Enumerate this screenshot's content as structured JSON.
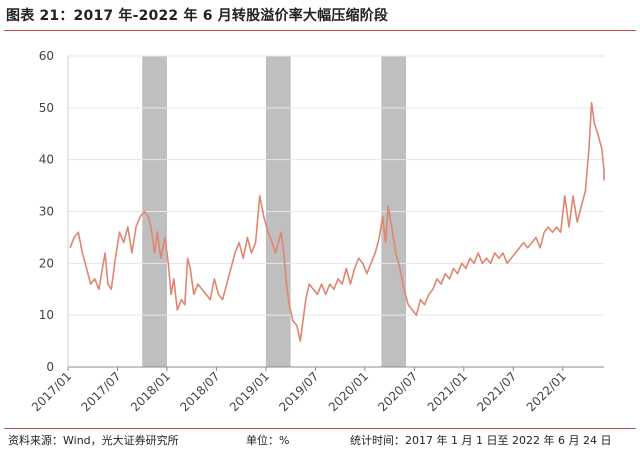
{
  "title": "图表 21：2017 年-2022 年 6 月转股溢价率大幅压缩阶段",
  "footer": {
    "source": "资料来源：Wind，光大证券研究所",
    "unit": "单位：%",
    "period": "统计时间：2017 年 1 月 1 日至 2022 年 6 月 24 日"
  },
  "colors": {
    "line": "#e08670",
    "shade": "#bfbfbf",
    "rule": "#c0504d",
    "grid": "#e6e6e6"
  },
  "chart_data": {
    "type": "line",
    "xlabel": "",
    "ylabel": "",
    "x_ticks": [
      "2017/01",
      "2017/07",
      "2018/01",
      "2018/07",
      "2019/01",
      "2019/07",
      "2020/01",
      "2020/07",
      "2021/01",
      "2021/07",
      "2022/01"
    ],
    "ylim": [
      0,
      60
    ],
    "y_ticks": [
      0,
      10,
      20,
      30,
      40,
      50,
      60
    ],
    "grid": true,
    "x_end": "2022/06",
    "shaded_periods": [
      [
        "2017/10",
        "2018/01"
      ],
      [
        "2019/01",
        "2019/04"
      ],
      [
        "2020/03",
        "2020/06"
      ]
    ],
    "series": [
      {
        "points": [
          [
            "2017/01",
            23
          ],
          [
            "2017/01",
            25
          ],
          [
            "2017/02",
            26
          ],
          [
            "2017/02",
            22
          ],
          [
            "2017/03",
            19
          ],
          [
            "2017/03",
            16
          ],
          [
            "2017/04",
            17
          ],
          [
            "2017/04",
            15
          ],
          [
            "2017/05",
            19
          ],
          [
            "2017/05",
            22
          ],
          [
            "2017/05",
            16
          ],
          [
            "2017/06",
            15
          ],
          [
            "2017/06",
            21
          ],
          [
            "2017/07",
            26
          ],
          [
            "2017/07",
            24
          ],
          [
            "2017/08",
            27
          ],
          [
            "2017/08",
            22
          ],
          [
            "2017/09",
            27
          ],
          [
            "2017/09",
            29
          ],
          [
            "2017/10",
            30
          ],
          [
            "2017/10",
            29
          ],
          [
            "2017/11",
            26
          ],
          [
            "2017/11",
            22
          ],
          [
            "2017/11",
            26
          ],
          [
            "2017/12",
            21
          ],
          [
            "2017/12",
            25
          ],
          [
            "2018/01",
            20
          ],
          [
            "2018/01",
            14
          ],
          [
            "2018/01",
            17
          ],
          [
            "2018/02",
            11
          ],
          [
            "2018/02",
            13
          ],
          [
            "2018/03",
            12
          ],
          [
            "2018/03",
            21
          ],
          [
            "2018/03",
            19
          ],
          [
            "2018/04",
            14
          ],
          [
            "2018/04",
            16
          ],
          [
            "2018/05",
            15
          ],
          [
            "2018/05",
            14
          ],
          [
            "2018/06",
            13
          ],
          [
            "2018/06",
            17
          ],
          [
            "2018/07",
            14
          ],
          [
            "2018/07",
            13
          ],
          [
            "2018/08",
            16
          ],
          [
            "2018/08",
            19
          ],
          [
            "2018/09",
            22
          ],
          [
            "2018/09",
            24
          ],
          [
            "2018/10",
            21
          ],
          [
            "2018/10",
            25
          ],
          [
            "2018/11",
            22
          ],
          [
            "2018/11",
            24
          ],
          [
            "2018/12",
            33
          ],
          [
            "2018/12",
            29
          ],
          [
            "2019/01",
            26
          ],
          [
            "2019/01",
            24
          ],
          [
            "2019/02",
            22
          ],
          [
            "2019/02",
            24
          ],
          [
            "2019/02",
            26
          ],
          [
            "2019/03",
            22
          ],
          [
            "2019/03",
            16
          ],
          [
            "2019/03",
            12
          ],
          [
            "2019/04",
            9
          ],
          [
            "2019/04",
            8
          ],
          [
            "2019/05",
            5
          ],
          [
            "2019/05",
            9
          ],
          [
            "2019/05",
            13
          ],
          [
            "2019/06",
            16
          ],
          [
            "2019/06",
            15
          ],
          [
            "2019/07",
            14
          ],
          [
            "2019/07",
            16
          ],
          [
            "2019/08",
            14
          ],
          [
            "2019/08",
            16
          ],
          [
            "2019/09",
            15
          ],
          [
            "2019/09",
            17
          ],
          [
            "2019/10",
            16
          ],
          [
            "2019/10",
            19
          ],
          [
            "2019/11",
            16
          ],
          [
            "2019/11",
            19
          ],
          [
            "2019/12",
            21
          ],
          [
            "2019/12",
            20
          ],
          [
            "2020/01",
            18
          ],
          [
            "2020/01",
            20
          ],
          [
            "2020/02",
            22
          ],
          [
            "2020/02",
            25
          ],
          [
            "2020/03",
            29
          ],
          [
            "2020/03",
            24
          ],
          [
            "2020/03",
            31
          ],
          [
            "2020/04",
            27
          ],
          [
            "2020/04",
            22
          ],
          [
            "2020/05",
            19
          ],
          [
            "2020/05",
            15
          ],
          [
            "2020/06",
            12
          ],
          [
            "2020/06",
            11
          ],
          [
            "2020/07",
            10
          ],
          [
            "2020/07",
            13
          ],
          [
            "2020/08",
            12
          ],
          [
            "2020/08",
            14
          ],
          [
            "2020/09",
            15
          ],
          [
            "2020/09",
            17
          ],
          [
            "2020/10",
            16
          ],
          [
            "2020/10",
            18
          ],
          [
            "2020/11",
            17
          ],
          [
            "2020/11",
            19
          ],
          [
            "2020/12",
            18
          ],
          [
            "2020/12",
            20
          ],
          [
            "2021/01",
            19
          ],
          [
            "2021/01",
            21
          ],
          [
            "2021/02",
            20
          ],
          [
            "2021/02",
            22
          ],
          [
            "2021/03",
            20
          ],
          [
            "2021/03",
            21
          ],
          [
            "2021/04",
            20
          ],
          [
            "2021/04",
            22
          ],
          [
            "2021/05",
            21
          ],
          [
            "2021/05",
            22
          ],
          [
            "2021/06",
            20
          ],
          [
            "2021/06",
            21
          ],
          [
            "2021/07",
            22
          ],
          [
            "2021/07",
            23
          ],
          [
            "2021/08",
            24
          ],
          [
            "2021/08",
            23
          ],
          [
            "2021/09",
            24
          ],
          [
            "2021/09",
            25
          ],
          [
            "2021/10",
            23
          ],
          [
            "2021/10",
            26
          ],
          [
            "2021/11",
            27
          ],
          [
            "2021/11",
            26
          ],
          [
            "2021/12",
            27
          ],
          [
            "2021/12",
            26
          ],
          [
            "2022/01",
            33
          ],
          [
            "2022/01",
            27
          ],
          [
            "2022/02",
            33
          ],
          [
            "2022/02",
            28
          ],
          [
            "2022/03",
            31
          ],
          [
            "2022/03",
            34
          ],
          [
            "2022/04",
            42
          ],
          [
            "2022/04",
            51
          ],
          [
            "2022/04",
            47
          ],
          [
            "2022/05",
            45
          ],
          [
            "2022/05",
            42
          ],
          [
            "2022/06",
            38
          ],
          [
            "2022/06",
            36
          ]
        ]
      }
    ]
  }
}
